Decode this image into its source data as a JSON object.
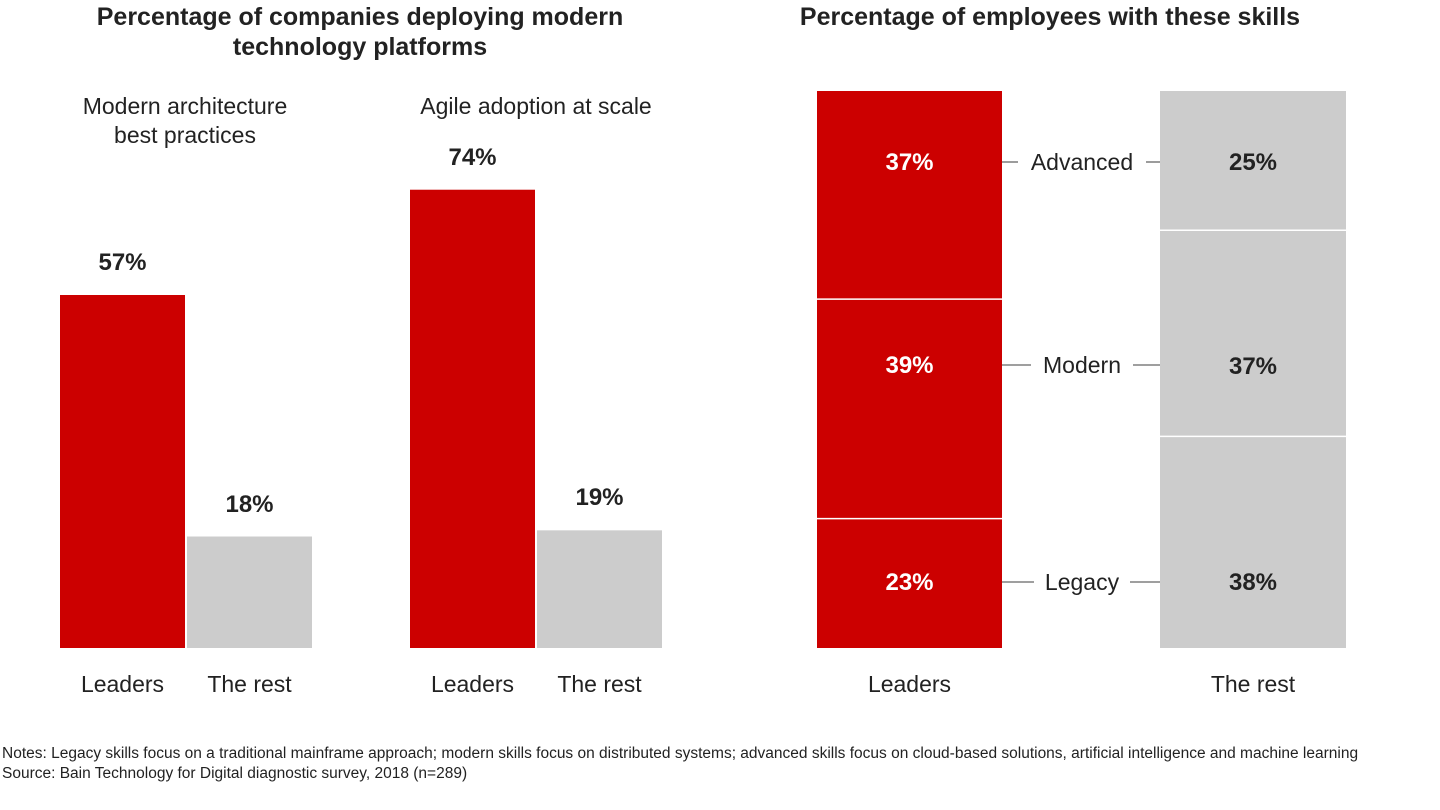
{
  "colors": {
    "leaders": "#cc0000",
    "rest": "#cccccc",
    "text_dark": "#222222",
    "text_light": "#ffffff",
    "connector": "#666666"
  },
  "left_panel": {
    "title_line1": "Percentage of companies deploying modern",
    "title_line2": "technology platforms"
  },
  "right_panel": {
    "title": "Percentage of employees with these skills"
  },
  "notes": {
    "notes_text": "Notes: Legacy skills focus on a traditional mainframe approach; modern skills focus on distributed systems; advanced skills focus on cloud-based solutions, artificial intelligence and machine learning",
    "source_text": "Source: Bain Technology for Digital diagnostic survey, 2018 (n=289)"
  },
  "chart_data": [
    {
      "type": "bar",
      "title": "Modern architecture best practices",
      "title_lines": [
        "Modern architecture",
        "best practices"
      ],
      "categories": [
        "Leaders",
        "The rest"
      ],
      "values": [
        57,
        18
      ],
      "labels": [
        "57%",
        "18%"
      ],
      "ylim": [
        0,
        100
      ],
      "unit": "%"
    },
    {
      "type": "bar",
      "title": "Agile adoption at scale",
      "title_lines": [
        "Agile adoption at scale"
      ],
      "categories": [
        "Leaders",
        "The rest"
      ],
      "values": [
        74,
        19
      ],
      "labels": [
        "74%",
        "19%"
      ],
      "ylim": [
        0,
        100
      ],
      "unit": "%"
    },
    {
      "type": "bar",
      "stacked": true,
      "title": "Percentage of employees with these skills",
      "categories": [
        "Leaders",
        "The rest"
      ],
      "segment_labels": [
        "Advanced",
        "Modern",
        "Legacy"
      ],
      "series": [
        {
          "name": "Advanced",
          "values": [
            37,
            25
          ],
          "labels": [
            "37%",
            "25%"
          ]
        },
        {
          "name": "Modern",
          "values": [
            39,
            37
          ],
          "labels": [
            "39%",
            "37%"
          ]
        },
        {
          "name": "Legacy",
          "values": [
            23,
            38
          ],
          "labels": [
            "23%",
            "38%"
          ]
        }
      ],
      "ylim": [
        0,
        100
      ],
      "unit": "%"
    }
  ]
}
